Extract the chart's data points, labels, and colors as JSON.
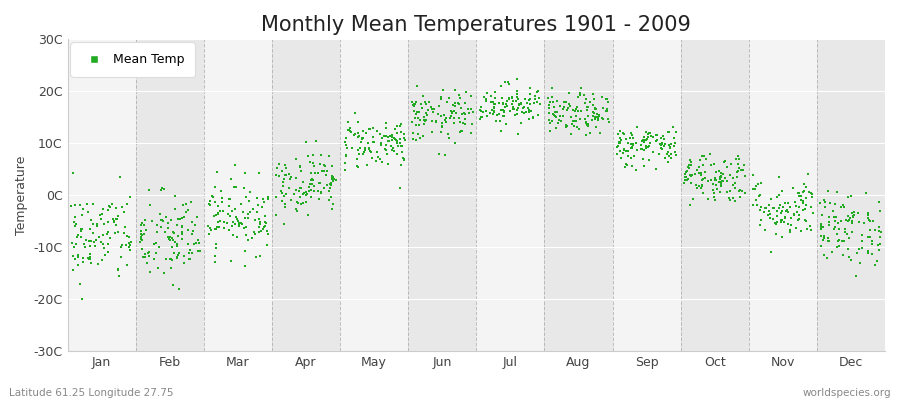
{
  "title": "Monthly Mean Temperatures 1901 - 2009",
  "ylabel": "Temperature",
  "xlabel_bottom_left": "Latitude 61.25 Longitude 27.75",
  "xlabel_bottom_right": "worldspecies.org",
  "months": [
    "Jan",
    "Feb",
    "Mar",
    "Apr",
    "May",
    "Jun",
    "Jul",
    "Aug",
    "Sep",
    "Oct",
    "Nov",
    "Dec"
  ],
  "month_means": [
    -8.0,
    -8.5,
    -4.0,
    2.5,
    10.0,
    15.0,
    17.5,
    15.5,
    9.5,
    3.5,
    -2.5,
    -6.5
  ],
  "month_stds": [
    4.5,
    4.5,
    3.5,
    3.0,
    2.5,
    2.5,
    2.0,
    2.0,
    2.0,
    2.5,
    3.0,
    3.5
  ],
  "n_years": 109,
  "dot_color": "#22aa22",
  "dot_size": 3,
  "background_color": "#ffffff",
  "plot_bg_color": "#ffffff",
  "ylim": [
    -30,
    30
  ],
  "yticks": [
    -30,
    -20,
    -10,
    0,
    10,
    20,
    30
  ],
  "ytick_labels": [
    "-30C",
    "-20C",
    "-10C",
    "0C",
    "10C",
    "20C",
    "30C"
  ],
  "grid_color": "#999999",
  "title_fontsize": 15,
  "axis_fontsize": 9,
  "tick_fontsize": 9,
  "legend_label": "Mean Temp",
  "stripe_light": "#f4f4f4",
  "stripe_dark": "#e8e8e8"
}
